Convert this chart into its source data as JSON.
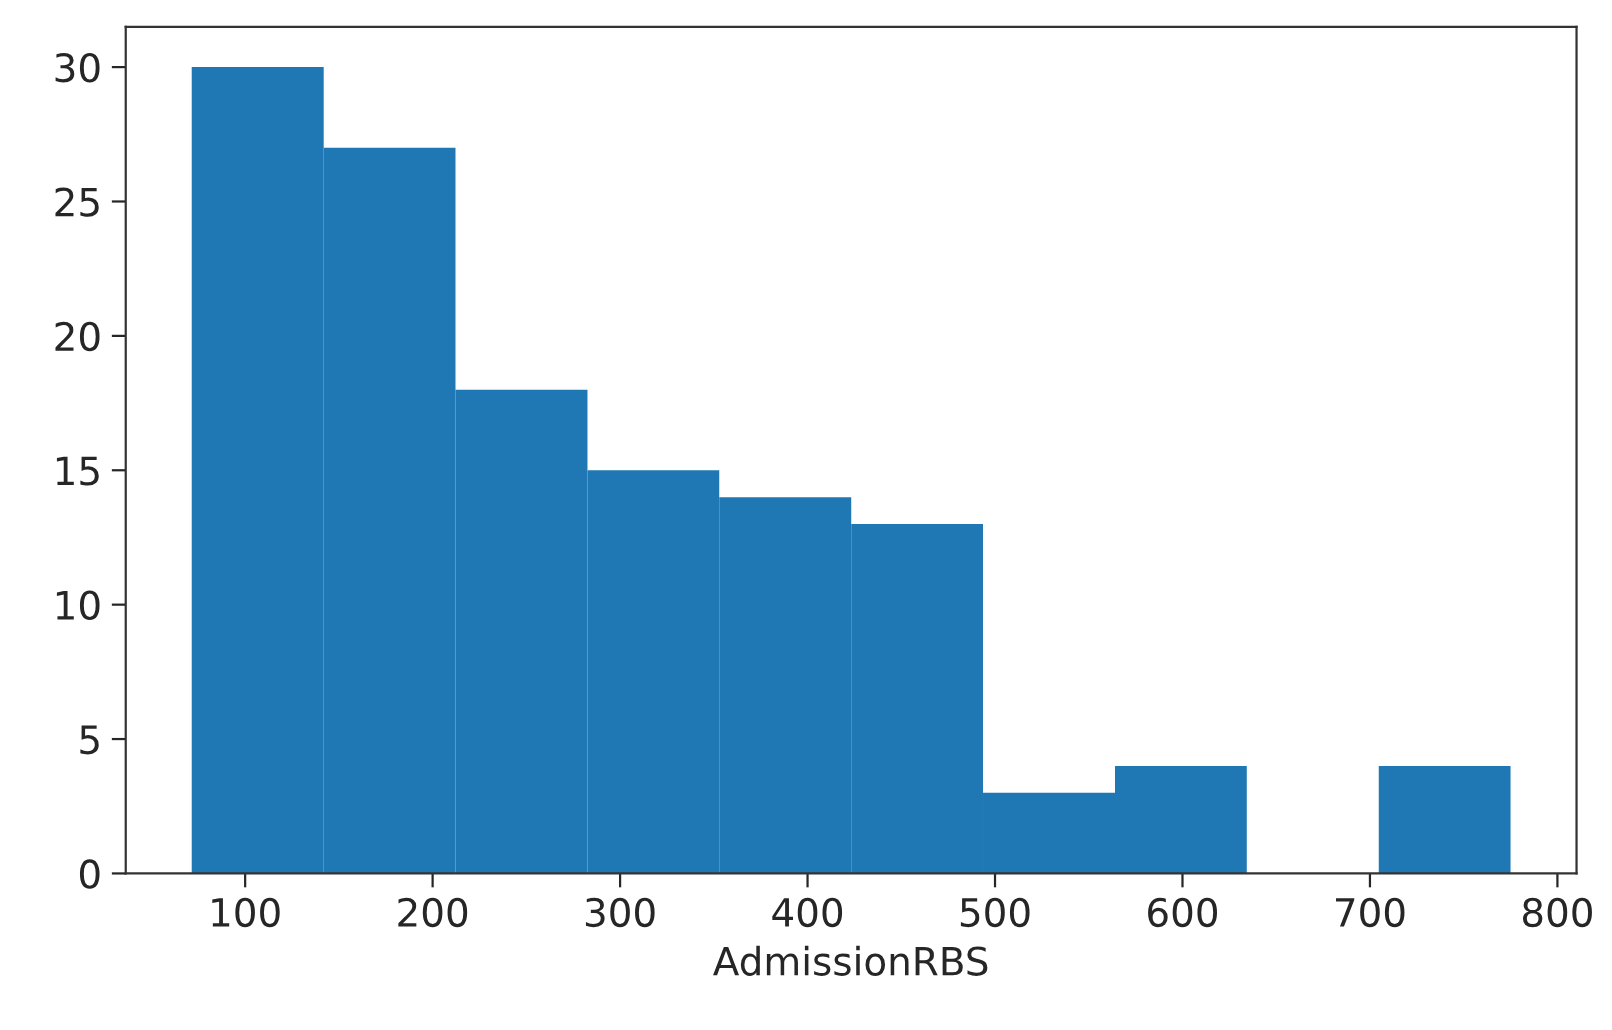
{
  "chart_data": {
    "type": "histogram",
    "xlabel": "AdmissionRBS",
    "bins": [
      71.5,
      141.9,
      212.2,
      282.6,
      352.9,
      423.3,
      493.6,
      564.0,
      634.3,
      704.7,
      775.0
    ],
    "values": [
      30,
      27,
      18,
      15,
      14,
      13,
      3,
      4,
      0,
      4
    ],
    "color": "#1f77b4",
    "xlim": [
      36.3,
      810.2
    ],
    "xticks": [
      100,
      200,
      300,
      400,
      500,
      600,
      700,
      800
    ],
    "ylim": [
      0,
      31.5
    ],
    "yticks": [
      0,
      5,
      10,
      15,
      20,
      25,
      30
    ],
    "grid": false
  }
}
